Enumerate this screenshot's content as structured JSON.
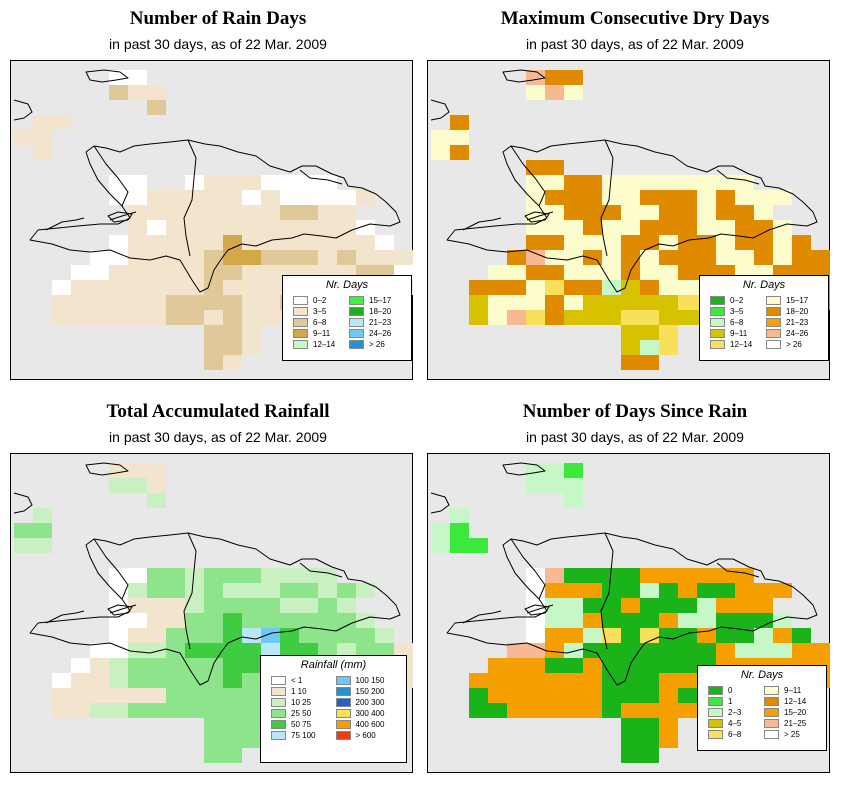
{
  "panels": [
    {
      "id": "rain-days",
      "title": "Number of Rain Days",
      "subtitle": "in past 30 days, as of  22 Mar. 2009",
      "legend": {
        "title": "Nr. Days",
        "items": [
          {
            "label": "0–2",
            "color": "#ffffff"
          },
          {
            "label": "3–5",
            "color": "#f3e4cd"
          },
          {
            "label": "6–8",
            "color": "#e1c899"
          },
          {
            "label": "9–11",
            "color": "#d2a84a"
          },
          {
            "label": "12–14",
            "color": "#c8f7c8"
          },
          {
            "label": "15–17",
            "color": "#40f040"
          },
          {
            "label": "18–20",
            "color": "#1cb01c"
          },
          {
            "label": "21–23",
            "color": "#b8e8f8"
          },
          {
            "label": "24–26",
            "color": "#6cc8f4"
          },
          {
            "label": "> 26",
            "color": "#1f94d8"
          }
        ]
      },
      "grid": {
        "colors": [
          "#e8e8e8",
          "#ffffff",
          "#f3e4cd",
          "#e1c899",
          "#d2a84a"
        ],
        "rows": [
          "000001100000000000000",
          "000003220000000000000",
          "000000030000000000000",
          "022000000000000000000",
          "220000000000000000000",
          "020000000000000000000",
          "000000000000000000000",
          "000001100122211110000",
          "000001122222121111200",
          "000000222222223322000",
          "000000212222222222100",
          "000001222224222222210",
          "000011222234433323222",
          "000112222233222222331",
          "001222222232222322232",
          "002222223333223332220",
          "002222223323222222220",
          "000000000033200000000",
          "000000000033200000000",
          "000000000032000000000"
        ]
      }
    },
    {
      "id": "dry-days",
      "title": "Maximum Consecutive Dry Days",
      "subtitle": "in past 30 days, as of  22 Mar. 2009",
      "legend": {
        "title": "Nr. Days",
        "items": [
          {
            "label": "0–2",
            "color": "#1ab31a"
          },
          {
            "label": "3–5",
            "color": "#3de83d"
          },
          {
            "label": "6–8",
            "color": "#c6f7c6"
          },
          {
            "label": "9–11",
            "color": "#d6c200"
          },
          {
            "label": "12–14",
            "color": "#f8e05a"
          },
          {
            "label": "15–17",
            "color": "#fdfccc"
          },
          {
            "label": "18–20",
            "color": "#e08a00"
          },
          {
            "label": "21–23",
            "color": "#f5a000"
          },
          {
            "label": "24–26",
            "color": "#f8b891"
          },
          {
            "label": "> 26",
            "color": "#ffffff"
          }
        ]
      },
      "grid": {
        "colors": [
          "#e8e8e8",
          "#fdfccc",
          "#e08a00",
          "#f8e05a",
          "#d6c200",
          "#f8b891",
          "#c6f7c6"
        ],
        "rows": [
          "000005220000000000000",
          "000001510000000000000",
          "000000000000000000000",
          "020000000000000000000",
          "110000000000000000000",
          "120000000000000000000",
          "000002200000000000000",
          "000001122111111110000",
          "000001222112221211100",
          "000001122211221221000",
          "000001112112221122100",
          "000002211122122122120",
          "000025112121222112122",
          "000112211121122211222",
          "002221322642111332222",
          "004111214444433133222",
          "004153244433444332220",
          "000000000044300000000",
          "000000000046300000000",
          "000000000022000000000"
        ]
      }
    },
    {
      "id": "total-rainfall",
      "title": "Total Accumulated Rainfall",
      "subtitle": "in past 30 days, as of  22 Mar. 2009",
      "legend": {
        "title": "Rainfall (mm)",
        "items": [
          {
            "label": "< 1",
            "color": "#ffffff"
          },
          {
            "label": "1  10",
            "color": "#f3e4cd"
          },
          {
            "label": "10  25",
            "color": "#c8f0c0"
          },
          {
            "label": "25  50",
            "color": "#8ee48a"
          },
          {
            "label": "50  75",
            "color": "#40cc40"
          },
          {
            "label": "75  100",
            "color": "#b8e8f8"
          },
          {
            "label": "100  150",
            "color": "#6cc8f4"
          },
          {
            "label": "150  200",
            "color": "#1f94d8"
          },
          {
            "label": "200  300",
            "color": "#1e64c8"
          },
          {
            "label": "300  400",
            "color": "#f8e05a"
          },
          {
            "label": "400  600",
            "color": "#f5a000"
          },
          {
            "label": "> 600",
            "color": "#f03c14"
          }
        ]
      },
      "grid": {
        "colors": [
          "#e8e8e8",
          "#ffffff",
          "#f3e4cd",
          "#c8f0c0",
          "#8ee48a",
          "#40cc40",
          "#b8e8f8",
          "#6cc8f4"
        ],
        "rows": [
          "000002220000000000000",
          "000003320000000000000",
          "000000030000000000000",
          "030000000000000000000",
          "440000000000000000000",
          "330000000000000000000",
          "000000000000000000000",
          "000001144344433330000",
          "000001344343334434300",
          "000001222344443343000",
          "000001122445444444300",
          "000001224445675444430",
          "000011334555565543442",
          "000123444445554444432",
          "001223444445444444422",
          "002222224444444444420",
          "002233444444444443320",
          "000000000044400000000",
          "000000000044400000000",
          "000000000044000000000"
        ]
      }
    },
    {
      "id": "days-since-rain",
      "title": "Number of Days Since Rain",
      "subtitle": "in past 30 days, as of  22 Mar. 2009",
      "legend": {
        "title": "Nr. Days",
        "items": [
          {
            "label": "0",
            "color": "#1ab31a"
          },
          {
            "label": "1",
            "color": "#3de83d"
          },
          {
            "label": "2–3",
            "color": "#c6f7c6"
          },
          {
            "label": "4–5",
            "color": "#d6c200"
          },
          {
            "label": "6–8",
            "color": "#f8e05a"
          },
          {
            "label": "9–11",
            "color": "#fdfccc"
          },
          {
            "label": "12–14",
            "color": "#e08a00"
          },
          {
            "label": "15–20",
            "color": "#f5a000"
          },
          {
            "label": "21–25",
            "color": "#f8b891"
          },
          {
            "label": "> 25",
            "color": "#ffffff"
          }
        ]
      },
      "grid": {
        "colors": [
          "#e8e8e8",
          "#ffffff",
          "#1ab31a",
          "#3de83d",
          "#c6f7c6",
          "#d6c200",
          "#f8e05a",
          "#f5a000",
          "#f8b891"
        ],
        "rows": [
          "000004430000000000000",
          "000004440000000000000",
          "000000040000000000000",
          "040000000000000000000",
          "430000000000000000000",
          "433000000000000000000",
          "000000000000000000000",
          "000001822227777770000",
          "000001777224272277700",
          "000001442272224777000",
          "000001447222744222400",
          "000001774626227224720",
          "000088742222222744477",
          "000777227222222777777",
          "007777777222777777777",
          "002777777222727777770",
          "002277777277777777770",
          "000000000022700000000",
          "000000000022700000000",
          "000000000022000000000"
        ]
      }
    }
  ]
}
